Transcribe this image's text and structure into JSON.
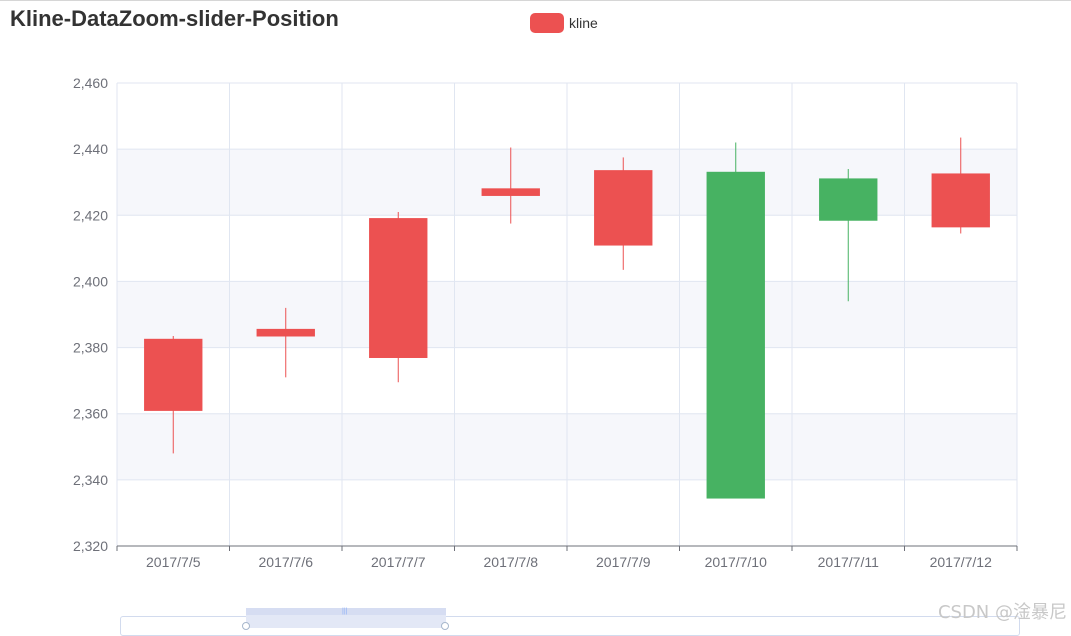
{
  "chart_data": {
    "type": "candlestick",
    "title": "Kline-DataZoom-slider-Position",
    "legend": [
      "kline"
    ],
    "categories": [
      "2017/7/5",
      "2017/7/6",
      "2017/7/7",
      "2017/7/8",
      "2017/7/9",
      "2017/7/10",
      "2017/7/11",
      "2017/7/12"
    ],
    "series": [
      {
        "name": "kline",
        "values": [
          {
            "open": 2361,
            "close": 2382.5,
            "low": 2348,
            "high": 2383.5
          },
          {
            "open": 2383.5,
            "close": 2385.5,
            "low": 2371,
            "high": 2392
          },
          {
            "open": 2377,
            "close": 2419,
            "low": 2369.5,
            "high": 2421
          },
          {
            "open": 2426,
            "close": 2428,
            "low": 2417.5,
            "high": 2440.5
          },
          {
            "open": 2411,
            "close": 2433.5,
            "low": 2403.5,
            "high": 2437.5
          },
          {
            "open": 2433,
            "close": 2334.5,
            "low": 2334.5,
            "high": 2442
          },
          {
            "open": 2431,
            "close": 2418.5,
            "low": 2394,
            "high": 2434
          },
          {
            "open": 2416.5,
            "close": 2432.5,
            "low": 2414.5,
            "high": 2443.5
          }
        ]
      }
    ],
    "ylim": [
      2320,
      2460
    ],
    "yticks": [
      2320,
      2340,
      2360,
      2380,
      2400,
      2420,
      2440,
      2460
    ],
    "ytick_labels": [
      "2,320",
      "2,340",
      "2,360",
      "2,380",
      "2,400",
      "2,420",
      "2,440",
      "2,460"
    ],
    "grid": true,
    "legend_position": "top-center",
    "datazoom": "slider-bottom",
    "colors": {
      "up": "#ec5151",
      "down": "#47b262",
      "split_band": "#f6f7fb",
      "grid": "#e0e6f1",
      "axis": "#6e7079"
    }
  },
  "watermark": "CSDN @淦暴尼"
}
